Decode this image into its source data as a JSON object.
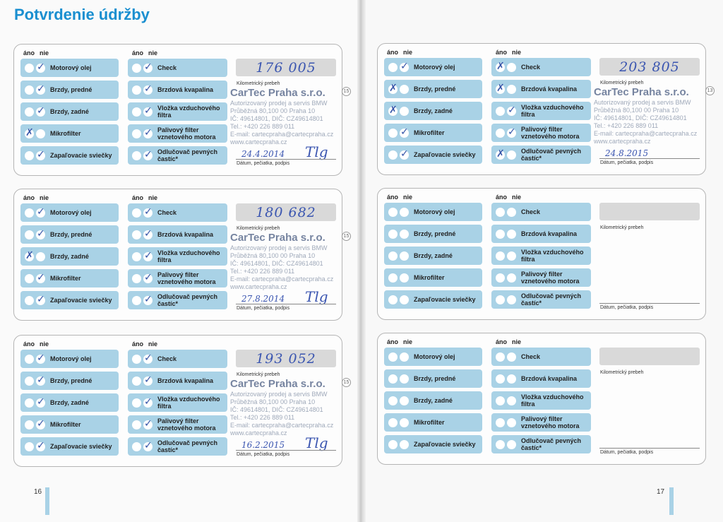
{
  "title": "Potvrdenie údržby",
  "headers": {
    "yes": "áno",
    "no": "nie"
  },
  "labels": {
    "km": "Kilometrický prebeh",
    "date": "Dátum, pečiatka, podpis"
  },
  "items": {
    "left": [
      "Motorový olej",
      "Brzdy, predné",
      "Brzdy, zadné",
      "Mikrofilter",
      "Zapaľovacie sviečky"
    ],
    "right": [
      "Check",
      "Brzdová kvapalina",
      "Vložka vzduchového\nfiltra",
      "Palivový filter\nvznetového motora",
      "Odlučovač pevných\nčastíc*"
    ]
  },
  "stamp": {
    "name": "CarTec Praha s.r.o.",
    "line1": "Autorizovaný prodej a servis BMW",
    "line2": "Průběžná 80,100 00 Praha 10",
    "line3": "IČ: 49614801, DIČ: CZ49614801",
    "line4": "Tel.: +420 226 889 011",
    "line5": "E-mail: cartecpraha@cartecpraha.cz",
    "line6": "www.cartecpraha.cz"
  },
  "page_numbers": {
    "left": "16",
    "right": "17"
  },
  "cards": [
    {
      "km": "176 005",
      "date": "24.4.2014",
      "signature": "Tlg",
      "seq": "15",
      "marks_left": [
        "✓",
        "✓",
        "✓",
        "✗",
        "✓"
      ],
      "marks_right": [
        "✓",
        "✓",
        "✓",
        "✓",
        "✓"
      ]
    },
    {
      "km": "180 682",
      "date": "27.8.2014",
      "signature": "Tlg",
      "seq": "15",
      "marks_left": [
        "✓",
        "✓",
        "✗",
        "✓",
        "✓"
      ],
      "marks_right": [
        "✓",
        "✓",
        "✓",
        "✓",
        "✓"
      ]
    },
    {
      "km": "193 052",
      "date": "16.2.2015",
      "signature": "Tlg",
      "seq": "15",
      "marks_left": [
        "✓",
        "✓",
        "✓",
        "✓",
        "✓"
      ],
      "marks_right": [
        "✓",
        "✓",
        "✓",
        "✓",
        "✓"
      ]
    },
    {
      "km": "203 805",
      "date": "24.8.2015",
      "signature": "",
      "seq": "13",
      "marks_left": [
        "✓",
        "✗",
        "✗",
        "✓",
        "✓"
      ],
      "marks_right": [
        "✗",
        "✗",
        "✓",
        "✓",
        "✗"
      ]
    },
    {
      "km": "",
      "date": "",
      "signature": "",
      "seq": "",
      "marks_left": [
        "",
        "",
        "",
        "",
        ""
      ],
      "marks_right": [
        "",
        "",
        "",
        "",
        ""
      ]
    },
    {
      "km": "",
      "date": "",
      "signature": "",
      "seq": "",
      "marks_left": [
        "",
        "",
        "",
        "",
        ""
      ],
      "marks_right": [
        "",
        "",
        "",
        "",
        ""
      ]
    }
  ]
}
